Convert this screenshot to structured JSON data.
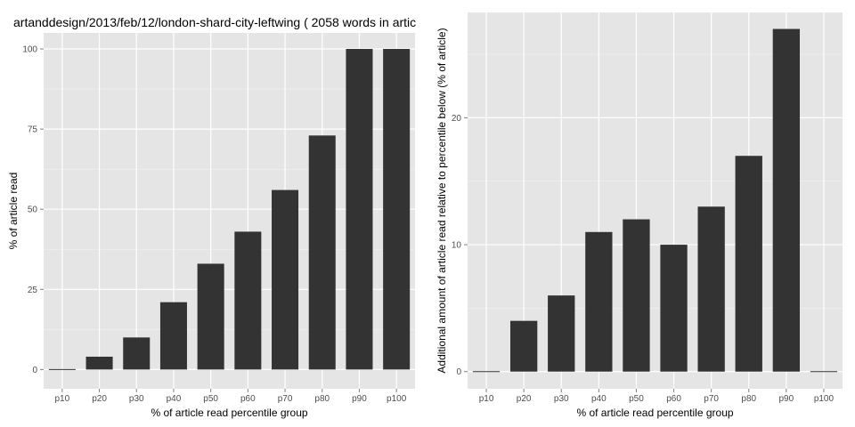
{
  "chart_data": [
    {
      "type": "bar",
      "title": "artanddesign/2013/feb/12/london-shard-city-leftwing ( 2058 words in artic",
      "xlabel": "% of article read percentile group",
      "ylabel": "% of article read",
      "categories": [
        "p10",
        "p20",
        "p30",
        "p40",
        "p50",
        "p60",
        "p70",
        "p80",
        "p90",
        "p100"
      ],
      "values": [
        0,
        4,
        10,
        21,
        33,
        43,
        56,
        73,
        100,
        100
      ],
      "ylim": [
        -6,
        105
      ],
      "yticks": [
        0,
        25,
        50,
        75,
        100
      ],
      "grid": true
    },
    {
      "type": "bar",
      "title": "",
      "xlabel": "% of article read percentile group",
      "ylabel": "Additional amount of article read relative to percentile below (% of article)",
      "categories": [
        "p10",
        "p20",
        "p30",
        "p40",
        "p50",
        "p60",
        "p70",
        "p80",
        "p90",
        "p100"
      ],
      "values": [
        0,
        4,
        6,
        11,
        12,
        10,
        13,
        17,
        27,
        0
      ],
      "ylim": [
        -1.35,
        28.3
      ],
      "yticks": [
        0,
        10,
        20
      ],
      "grid": true
    }
  ],
  "colors": {
    "panel_background": "#e5e5e5",
    "gridline": "#ffffff",
    "bar_fill": "#333333",
    "tick_text": "#4d4d4d",
    "text": "#000000"
  }
}
